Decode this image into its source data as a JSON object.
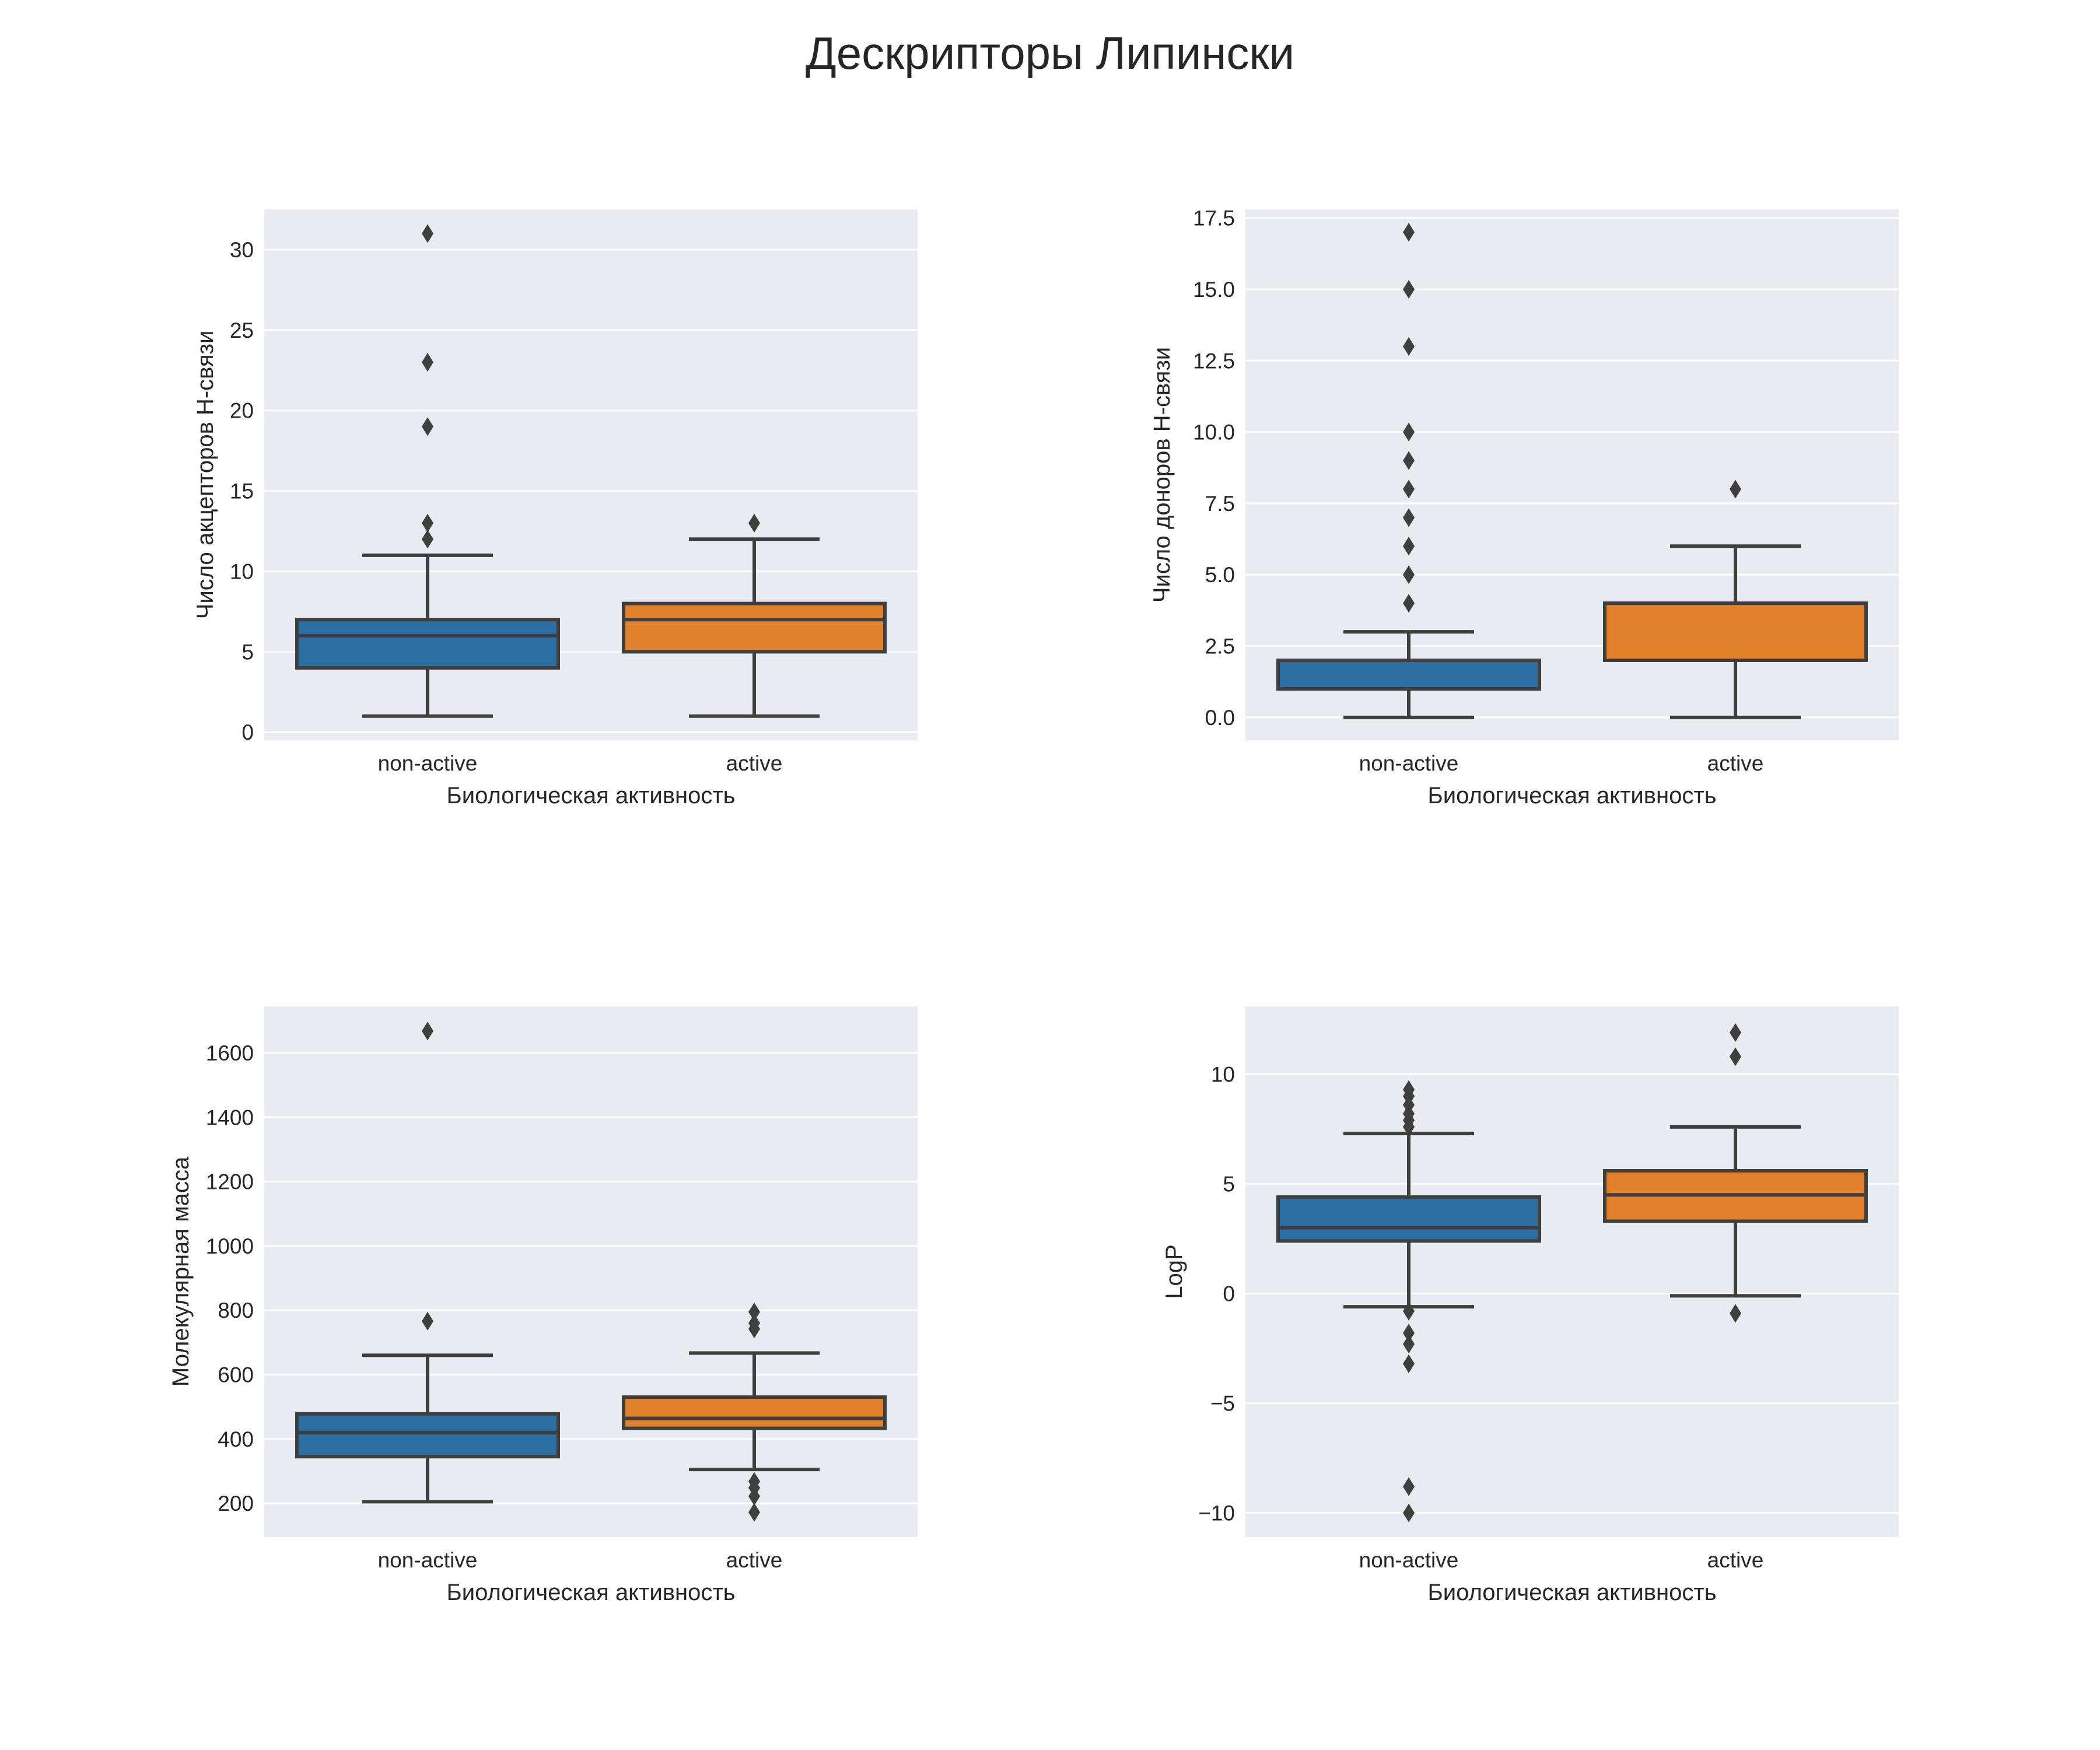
{
  "figure": {
    "title": "Дескрипторы Липински",
    "background_color": "#ffffff",
    "panel_color": "#eaeaf2",
    "grid_color": "#ffffff",
    "line_color": "#3f3f3f",
    "text_color": "#262626",
    "palette": [
      "#2b6fa5",
      "#e1812c"
    ]
  },
  "chart_data": [
    {
      "type": "box",
      "position": "top-left",
      "xlabel": "Биологическая активность",
      "ylabel": "Число акцепторов Н-связи",
      "ylim": [
        -0.5,
        32.5
      ],
      "grid": true,
      "yticks": [
        0,
        5,
        10,
        15,
        20,
        25,
        30
      ],
      "ytick_labels": [
        "0",
        "5",
        "10",
        "15",
        "20",
        "25",
        "30"
      ],
      "categories": [
        "non-active",
        "active"
      ],
      "boxes": [
        {
          "whisker_low": 1,
          "q1": 4,
          "median": 6,
          "q3": 7,
          "whisker_high": 11,
          "outliers": [
            12,
            13,
            19,
            23,
            31
          ]
        },
        {
          "whisker_low": 1,
          "q1": 5,
          "median": 7,
          "q3": 8,
          "whisker_high": 12,
          "outliers": [
            13
          ]
        }
      ]
    },
    {
      "type": "box",
      "position": "top-right",
      "xlabel": "Биологическая активность",
      "ylabel": "Число доноров Н-связи",
      "ylim": [
        -0.8,
        17.8
      ],
      "grid": true,
      "yticks": [
        0,
        2.5,
        5,
        7.5,
        10,
        12.5,
        15,
        17.5
      ],
      "ytick_labels": [
        "0.0",
        "2.5",
        "5.0",
        "7.5",
        "10.0",
        "12.5",
        "15.0",
        "17.5"
      ],
      "categories": [
        "non-active",
        "active"
      ],
      "boxes": [
        {
          "whisker_low": 0,
          "q1": 1,
          "median": 2,
          "q3": 2,
          "whisker_high": 3,
          "outliers": [
            4,
            5,
            6,
            7,
            8,
            9,
            10,
            13,
            15,
            17
          ]
        },
        {
          "whisker_low": 0,
          "q1": 2,
          "median": 4,
          "q3": 4,
          "whisker_high": 6,
          "outliers": [
            8
          ]
        }
      ]
    },
    {
      "type": "box",
      "position": "bottom-left",
      "xlabel": "Биологическая активность",
      "ylabel": "Молекулярная масса",
      "ylim": [
        95,
        1745
      ],
      "grid": true,
      "yticks": [
        200,
        400,
        600,
        800,
        1000,
        1200,
        1400,
        1600
      ],
      "ytick_labels": [
        "200",
        "400",
        "600",
        "800",
        "1000",
        "1200",
        "1400",
        "1600"
      ],
      "categories": [
        "non-active",
        "active"
      ],
      "boxes": [
        {
          "whisker_low": 205,
          "q1": 345,
          "median": 420,
          "q3": 478,
          "whisker_high": 660,
          "outliers": [
            766,
            1668
          ]
        },
        {
          "whisker_low": 305,
          "q1": 433,
          "median": 464,
          "q3": 530,
          "whisker_high": 667,
          "outliers": [
            172,
            222,
            248,
            268,
            742,
            760,
            795
          ]
        }
      ]
    },
    {
      "type": "box",
      "position": "bottom-right",
      "xlabel": "Биологическая активность",
      "ylabel": "LogP",
      "ylim": [
        -11.1,
        13.1
      ],
      "grid": true,
      "yticks": [
        -10,
        -5,
        0,
        5,
        10
      ],
      "ytick_labels": [
        "−10",
        "−5",
        "0",
        "5",
        "10"
      ],
      "categories": [
        "non-active",
        "active"
      ],
      "boxes": [
        {
          "whisker_low": -0.6,
          "q1": 2.4,
          "median": 3.0,
          "q3": 4.4,
          "whisker_high": 7.3,
          "outliers": [
            -10.0,
            -8.8,
            -3.2,
            -2.3,
            -1.8,
            -0.8,
            7.6,
            7.9,
            8.2,
            8.6,
            9.0,
            9.3
          ]
        },
        {
          "whisker_low": -0.1,
          "q1": 3.3,
          "median": 4.5,
          "q3": 5.6,
          "whisker_high": 7.6,
          "outliers": [
            -0.9,
            10.8,
            11.9
          ]
        }
      ]
    }
  ]
}
